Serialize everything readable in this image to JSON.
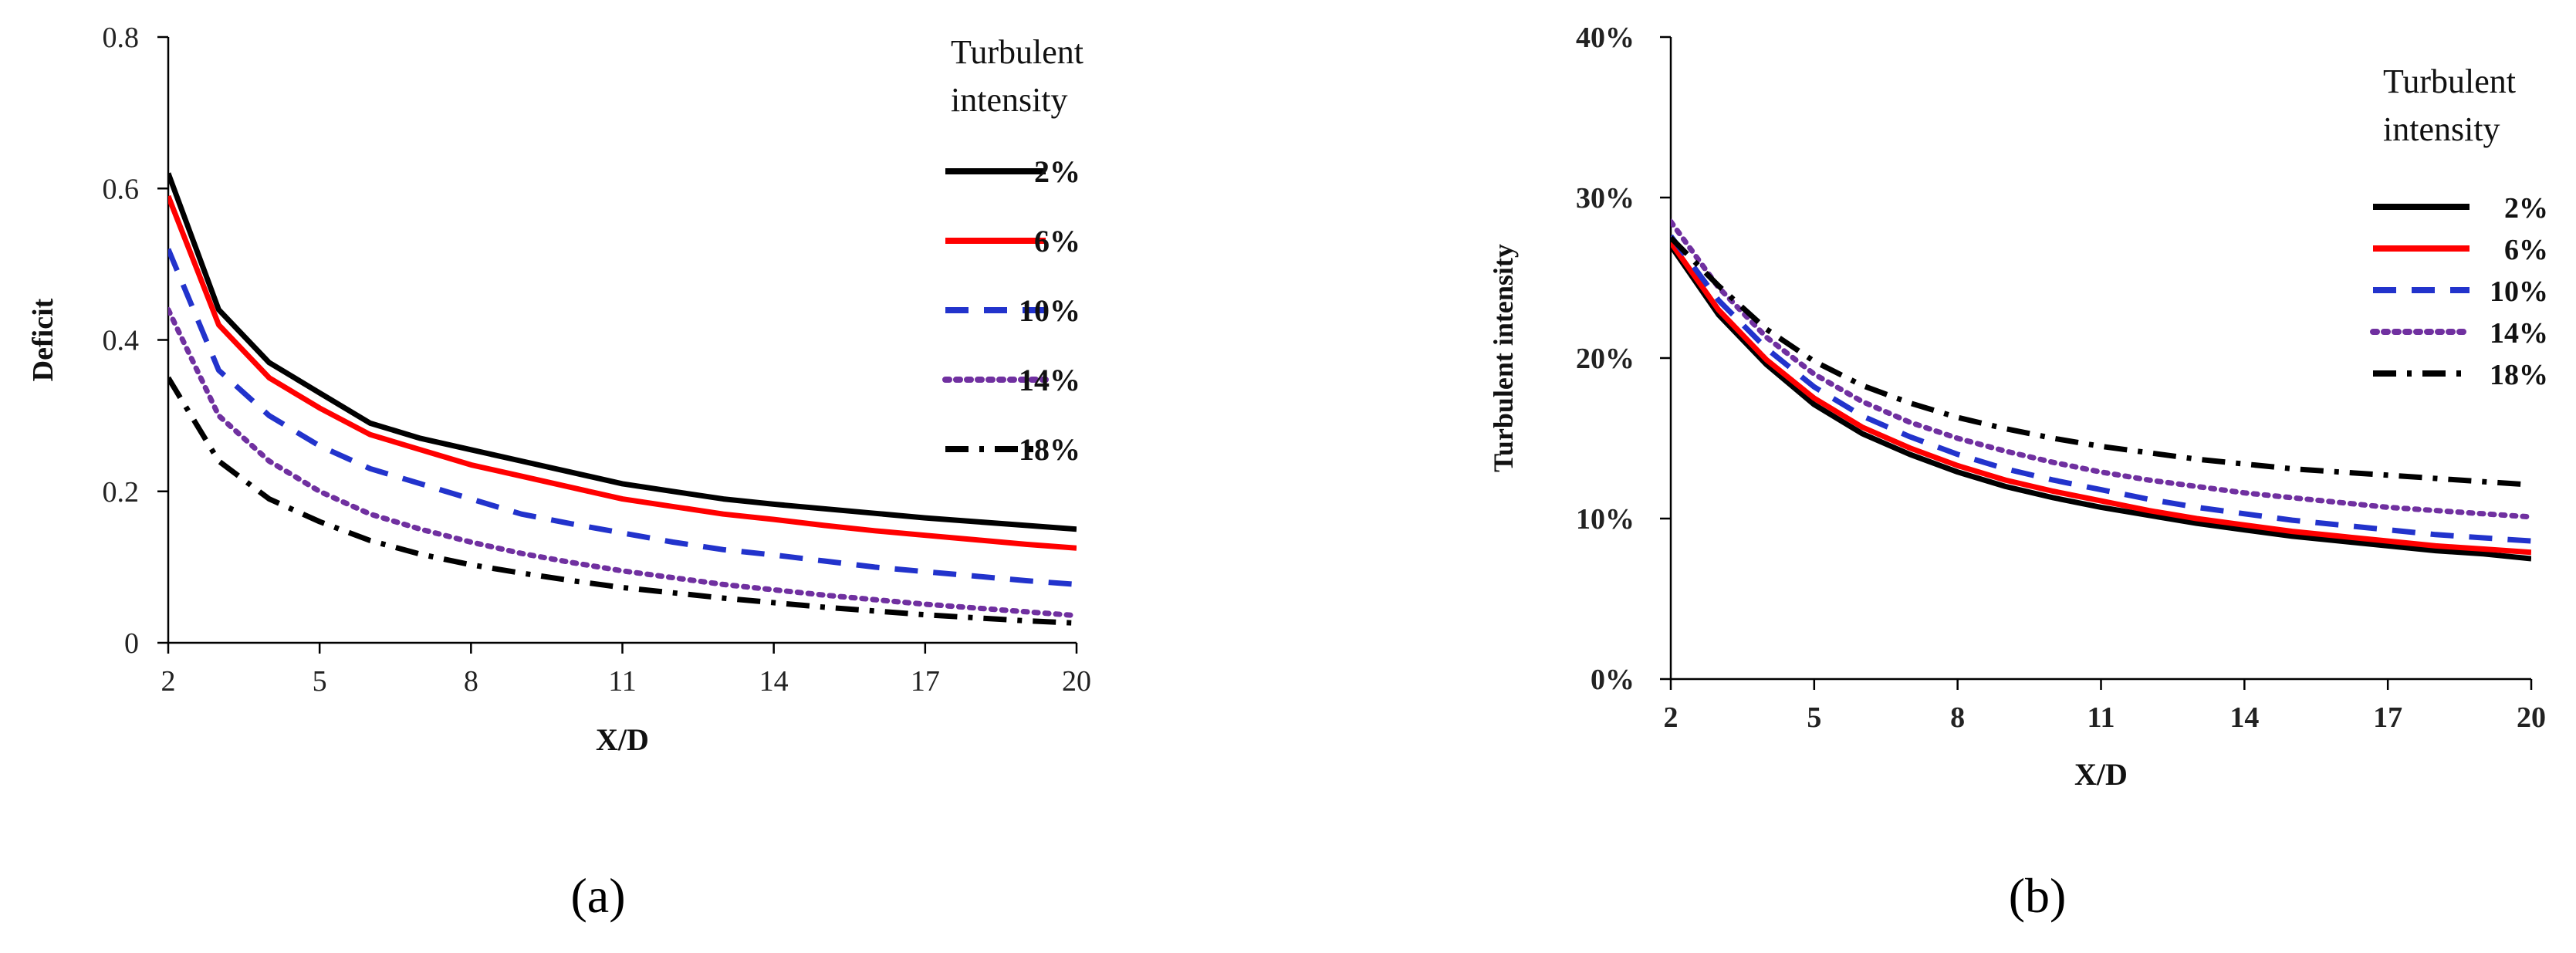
{
  "chart_data": [
    {
      "panel_label": "(a)",
      "type": "line",
      "xlabel": "X/D",
      "ylabel": "Deficit",
      "xlim": [
        2,
        20
      ],
      "ylim": [
        0,
        0.8
      ],
      "xticks": [
        2,
        5,
        8,
        11,
        14,
        17,
        20
      ],
      "xtick_labels": [
        "2",
        "5",
        "8",
        "11",
        "14",
        "17",
        "20"
      ],
      "yticks": [
        0,
        0.2,
        0.4,
        0.6,
        0.8
      ],
      "ytick_labels": [
        "0",
        "0.2",
        "0.4",
        "0.6",
        "0.8"
      ],
      "x": [
        2,
        3,
        4,
        5,
        6,
        7,
        8,
        9,
        10,
        11,
        12,
        13,
        14,
        15,
        16,
        17,
        18,
        19,
        20
      ],
      "legend_title": "Turbulent intensity",
      "legend_title_lines": [
        "Turbulent",
        "intensity"
      ],
      "legend_position": "top-right",
      "grid": false,
      "series": [
        {
          "name": "2%",
          "color": "#000000",
          "dash": "solid",
          "values": [
            0.62,
            0.44,
            0.37,
            0.33,
            0.29,
            0.27,
            0.255,
            0.24,
            0.225,
            0.21,
            0.2,
            0.19,
            0.183,
            0.177,
            0.171,
            0.165,
            0.16,
            0.155,
            0.15
          ]
        },
        {
          "name": "6%",
          "color": "#ff0000",
          "dash": "solid",
          "values": [
            0.59,
            0.42,
            0.35,
            0.31,
            0.275,
            0.255,
            0.235,
            0.22,
            0.205,
            0.19,
            0.18,
            0.17,
            0.163,
            0.155,
            0.148,
            0.142,
            0.136,
            0.13,
            0.125
          ]
        },
        {
          "name": "10%",
          "color": "#2233cc",
          "dash": "dashed",
          "values": [
            0.52,
            0.36,
            0.3,
            0.26,
            0.23,
            0.21,
            0.19,
            0.17,
            0.157,
            0.145,
            0.133,
            0.123,
            0.116,
            0.108,
            0.1,
            0.094,
            0.088,
            0.082,
            0.077
          ]
        },
        {
          "name": "14%",
          "color": "#7030a0",
          "dash": "dotted",
          "values": [
            0.44,
            0.3,
            0.24,
            0.2,
            0.17,
            0.15,
            0.133,
            0.118,
            0.106,
            0.095,
            0.086,
            0.077,
            0.07,
            0.063,
            0.057,
            0.051,
            0.046,
            0.041,
            0.036
          ]
        },
        {
          "name": "18%",
          "color": "#000000",
          "dash": "dashdot",
          "values": [
            0.35,
            0.24,
            0.19,
            0.16,
            0.135,
            0.117,
            0.103,
            0.092,
            0.082,
            0.073,
            0.066,
            0.059,
            0.053,
            0.047,
            0.042,
            0.037,
            0.033,
            0.029,
            0.026
          ]
        }
      ]
    },
    {
      "panel_label": "(b)",
      "type": "line",
      "xlabel": "X/D",
      "ylabel": "Turbulent  intensity",
      "xlim": [
        2,
        20
      ],
      "ylim": [
        0,
        0.4
      ],
      "xticks": [
        2,
        5,
        8,
        11,
        14,
        17,
        20
      ],
      "xtick_labels": [
        "2",
        "5",
        "8",
        "11",
        "14",
        "17",
        "20"
      ],
      "yticks": [
        0,
        0.1,
        0.2,
        0.3,
        0.4
      ],
      "ytick_labels": [
        "0%",
        "10%",
        "20%",
        "30%",
        "40%"
      ],
      "x": [
        2,
        3,
        4,
        5,
        6,
        7,
        8,
        9,
        10,
        11,
        12,
        13,
        14,
        15,
        16,
        17,
        18,
        19,
        20
      ],
      "legend_title": "Turbulent intensity",
      "legend_title_lines": [
        "Turbulent",
        "intensity"
      ],
      "legend_position": "top-right",
      "grid": false,
      "series": [
        {
          "name": "2%",
          "color": "#000000",
          "dash": "solid",
          "values": [
            0.27,
            0.227,
            0.196,
            0.171,
            0.153,
            0.14,
            0.129,
            0.12,
            0.113,
            0.107,
            0.102,
            0.097,
            0.093,
            0.089,
            0.086,
            0.083,
            0.08,
            0.078,
            0.075
          ]
        },
        {
          "name": "6%",
          "color": "#ff0000",
          "dash": "solid",
          "values": [
            0.272,
            0.23,
            0.199,
            0.175,
            0.157,
            0.144,
            0.133,
            0.124,
            0.117,
            0.111,
            0.105,
            0.1,
            0.096,
            0.092,
            0.089,
            0.086,
            0.083,
            0.081,
            0.079
          ]
        },
        {
          "name": "10%",
          "color": "#2233cc",
          "dash": "dashed",
          "values": [
            0.276,
            0.236,
            0.206,
            0.182,
            0.164,
            0.151,
            0.14,
            0.131,
            0.124,
            0.118,
            0.112,
            0.107,
            0.103,
            0.099,
            0.096,
            0.093,
            0.09,
            0.088,
            0.086
          ]
        },
        {
          "name": "14%",
          "color": "#7030a0",
          "dash": "dotted",
          "values": [
            0.285,
            0.244,
            0.213,
            0.19,
            0.173,
            0.16,
            0.15,
            0.142,
            0.135,
            0.129,
            0.124,
            0.12,
            0.116,
            0.113,
            0.11,
            0.107,
            0.105,
            0.103,
            0.101
          ]
        },
        {
          "name": "18%",
          "color": "#000000",
          "dash": "dashdot",
          "values": [
            0.275,
            0.245,
            0.218,
            0.198,
            0.183,
            0.172,
            0.163,
            0.156,
            0.15,
            0.145,
            0.141,
            0.137,
            0.134,
            0.131,
            0.129,
            0.127,
            0.125,
            0.123,
            0.121
          ]
        }
      ]
    }
  ]
}
